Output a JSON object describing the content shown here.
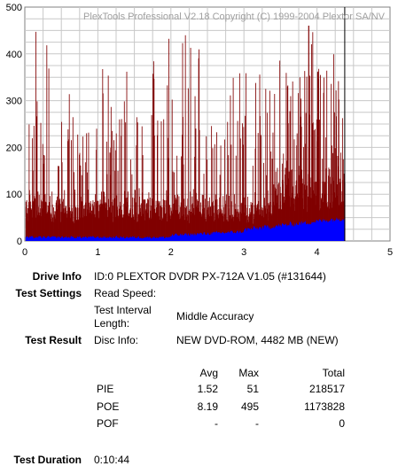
{
  "chart_data": {
    "type": "bar",
    "watermark": "PlexTools Professional V2.18 Copyright (C) 1999-2004 Plextor SA/NV",
    "xlim": [
      0,
      5
    ],
    "ylim": [
      0,
      500
    ],
    "x_ticks": [
      "0",
      "1",
      "2",
      "3",
      "4",
      "5"
    ],
    "y_ticks": [
      "0",
      "100",
      "200",
      "300",
      "400",
      "500"
    ],
    "grid": true,
    "end_position": 4.38,
    "series": [
      {
        "color": "#800000",
        "max": 495,
        "avg": 8.19
      },
      {
        "color": "#0000ff",
        "max": 51,
        "avg": 1.52
      }
    ]
  },
  "info": {
    "drive_info_label": "Drive Info",
    "drive_info_value": "ID:0 PLEXTOR DVDR PX-712A V1.05 (#131644)",
    "test_settings_label": "Test Settings",
    "read_speed_label": "Read Speed:",
    "interval_label_1": "Test Interval",
    "interval_label_2": "Length:",
    "interval_value": "Middle Accuracy",
    "test_result_label": "Test Result",
    "disc_info_label": "Disc Info:",
    "disc_info_value": "NEW DVD-ROM, 4482 MB (NEW)",
    "test_duration_label": "Test Duration",
    "test_duration_value": "0:10:44"
  },
  "results": {
    "headers": {
      "avg": "Avg",
      "max": "Max",
      "total": "Total"
    },
    "rows": [
      {
        "name": "PIE",
        "avg": "1.52",
        "max": "51",
        "total": "218517"
      },
      {
        "name": "POE",
        "avg": "8.19",
        "max": "495",
        "total": "1173828"
      },
      {
        "name": "POF",
        "avg": "-",
        "max": "-",
        "total": "0"
      }
    ]
  }
}
